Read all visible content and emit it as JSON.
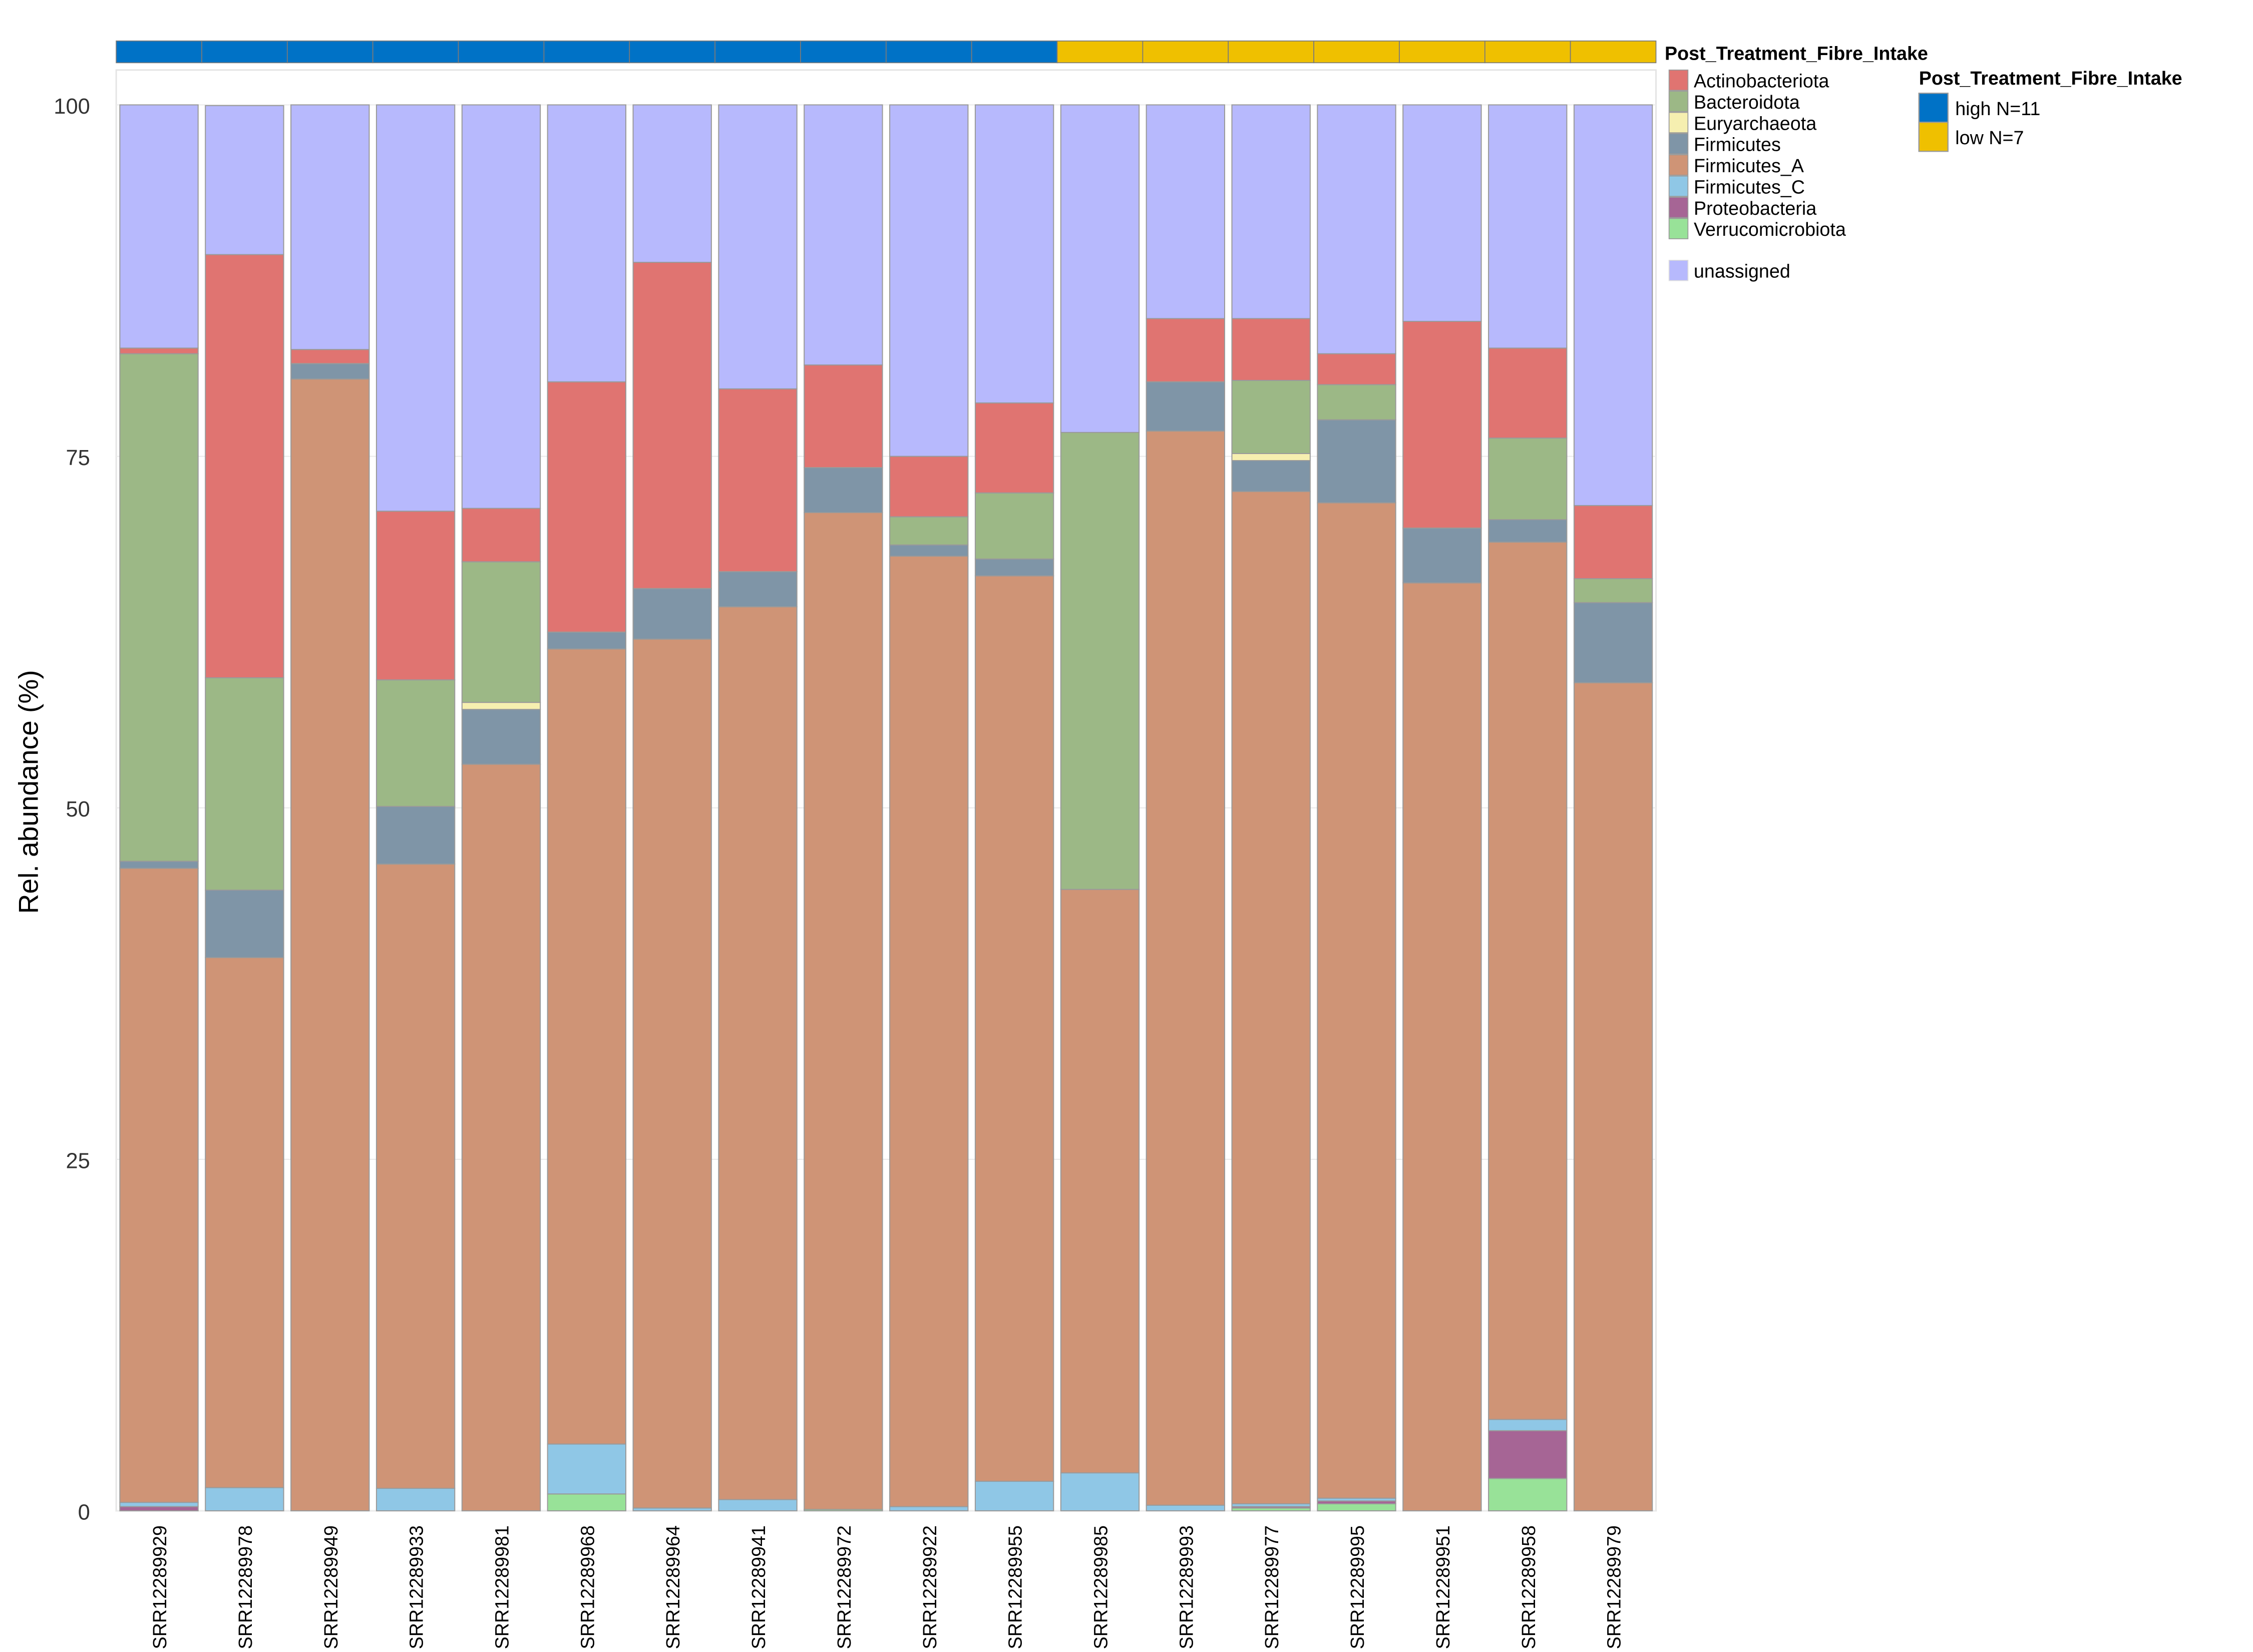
{
  "chart_data": {
    "type": "bar",
    "stacked": true,
    "ylabel": "Rel. abundance (%)",
    "xlabel": "",
    "ylim": [
      0,
      100
    ],
    "yticks": [
      0,
      25,
      50,
      75,
      100
    ],
    "grid": true,
    "legend_position": "right",
    "categories": [
      "SRR12289929",
      "SRR12289978",
      "SRR12289949",
      "SRR12289933",
      "SRR12289981",
      "SRR12289968",
      "SRR12289964",
      "SRR12289941",
      "SRR12289972",
      "SRR12289922",
      "SRR12289955",
      "SRR12289985",
      "SRR12289993",
      "SRR12289977",
      "SRR12289995",
      "SRR12289951",
      "SRR12289958",
      "SRR12289979"
    ],
    "groups": [
      "high",
      "high",
      "high",
      "high",
      "high",
      "high",
      "high",
      "high",
      "high",
      "high",
      "high",
      "low",
      "low",
      "low",
      "low",
      "low",
      "low",
      "low"
    ],
    "series": [
      {
        "name": "Verrucomicrobiota",
        "color": "#98e298",
        "values": [
          0,
          0,
          0,
          0,
          0,
          1.2,
          0,
          0,
          0.1,
          0,
          0,
          0,
          0,
          0.2,
          0.5,
          0,
          2.3,
          0
        ]
      },
      {
        "name": "Proteobacteria",
        "color": "#a66595",
        "values": [
          0.3,
          0,
          0,
          0,
          0,
          0,
          0,
          0,
          0,
          0,
          0,
          0,
          0,
          0.1,
          0.2,
          0,
          3.4,
          0
        ]
      },
      {
        "name": "Firmicutes_C",
        "color": "#8fc7e6",
        "values": [
          0.3,
          1.65,
          0,
          1.6,
          0,
          3.55,
          0.2,
          0.8,
          0,
          0.3,
          2.1,
          2.7,
          0.4,
          0.2,
          0.2,
          0,
          0.8,
          0
        ]
      },
      {
        "name": "Firmicutes_A",
        "color": "#cf9476",
        "values": [
          45.1,
          37.7,
          80.5,
          44.4,
          53.1,
          56.55,
          61.8,
          63.5,
          70.9,
          67.6,
          64.4,
          41.5,
          76.4,
          72.0,
          70.8,
          66.0,
          62.4,
          58.9
        ]
      },
      {
        "name": "Firmicutes",
        "color": "#7f95a7",
        "values": [
          0.5,
          4.8,
          1.1,
          4.1,
          3.9,
          1.2,
          3.6,
          2.5,
          3.2,
          0.8,
          1.2,
          0,
          3.5,
          2.2,
          5.9,
          3.9,
          1.6,
          5.7
        ]
      },
      {
        "name": "Euryarchaeota",
        "color": "#f6efb0",
        "values": [
          0,
          0,
          0,
          0,
          0.5,
          0,
          0,
          0,
          0,
          0,
          0,
          0,
          0,
          0.5,
          0,
          0,
          0,
          0
        ]
      },
      {
        "name": "Bacteroidota",
        "color": "#9cb886",
        "values": [
          36.1,
          15.1,
          0,
          9.0,
          10.0,
          0,
          0,
          0,
          0,
          2.0,
          4.7,
          32.5,
          0,
          5.2,
          2.5,
          0,
          5.8,
          1.7
        ]
      },
      {
        "name": "Actinobacteriota",
        "color": "#e07471",
        "values": [
          0.4,
          30.1,
          1.0,
          12.0,
          3.8,
          17.8,
          23.2,
          13.0,
          7.3,
          4.3,
          6.4,
          0,
          4.5,
          4.4,
          2.2,
          14.7,
          6.4,
          5.2
        ]
      },
      {
        "name": "unassigned",
        "color": "#b7b9fd",
        "values": [
          17.3,
          10.6,
          17.4,
          28.9,
          28.7,
          19.7,
          11.2,
          20.2,
          18.5,
          25.0,
          21.2,
          23.3,
          15.2,
          15.2,
          17.7,
          15.4,
          17.3,
          28.5
        ]
      }
    ],
    "taxa_legend": {
      "title": "Post_Treatment_Fibre_Intake",
      "items": [
        "Actinobacteriota",
        "Bacteroidota",
        "Euryarchaeota",
        "Firmicutes",
        "Firmicutes_A",
        "Firmicutes_C",
        "Proteobacteria",
        "Verrucomicrobiota"
      ],
      "extra": "unassigned"
    },
    "group_legend": {
      "title": "Post_Treatment_Fibre_Intake",
      "items": [
        {
          "key": "high",
          "label": "high N=11",
          "color": "#0072c6"
        },
        {
          "key": "low",
          "label": "low N=7",
          "color": "#efc000"
        }
      ]
    }
  }
}
